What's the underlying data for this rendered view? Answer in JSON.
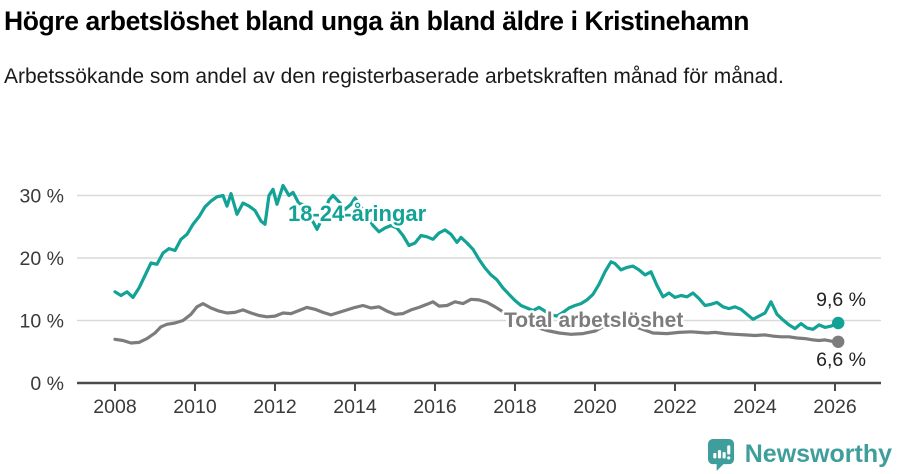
{
  "title": "Högre arbetslöshet bland unga än bland äldre i Kristinehamn",
  "subtitle": "Arbetssökande som andel av den registerbaserade arbetskraften månad för månad.",
  "footer": {
    "brand": "Newsworthy",
    "brand_color": "#3f9e9c"
  },
  "chart_data": {
    "type": "line",
    "unit": "%",
    "title": "Högre arbetslöshet bland unga än bland äldre i Kristinehamn",
    "xlabel": "",
    "ylabel": "Arbetssökande som andel av den registerbaserade arbetskraften",
    "x_axis": {
      "ticks": [
        2008,
        2010,
        2012,
        2014,
        2016,
        2018,
        2020,
        2022,
        2024,
        2026
      ],
      "range": [
        2007.6,
        2026.6
      ],
      "grid": false
    },
    "y_axis": {
      "ticks": [
        {
          "value": 0,
          "label": "0 %"
        },
        {
          "value": 10,
          "label": "10 %"
        },
        {
          "value": 20,
          "label": "20 %"
        },
        {
          "value": 30,
          "label": "30 %"
        }
      ],
      "range": [
        0,
        33
      ],
      "grid": true
    },
    "style": {
      "grid_color": "#d9d9d9",
      "axis_color": "#4a4a4a",
      "background": "#ffffff"
    },
    "legend_position": "inline-labels",
    "series": [
      {
        "name": "18-24-åringar",
        "color": "#13a296",
        "end_label": "9,6 %",
        "end_value": 9.6,
        "points": [
          [
            2008.0,
            14.6
          ],
          [
            2008.15,
            14.0
          ],
          [
            2008.3,
            14.6
          ],
          [
            2008.45,
            13.7
          ],
          [
            2008.6,
            15.2
          ],
          [
            2008.75,
            17.2
          ],
          [
            2008.9,
            19.2
          ],
          [
            2009.05,
            19.0
          ],
          [
            2009.2,
            20.8
          ],
          [
            2009.35,
            21.5
          ],
          [
            2009.5,
            21.2
          ],
          [
            2009.65,
            23.0
          ],
          [
            2009.8,
            23.8
          ],
          [
            2009.95,
            25.4
          ],
          [
            2010.1,
            26.6
          ],
          [
            2010.25,
            28.2
          ],
          [
            2010.4,
            29.1
          ],
          [
            2010.55,
            29.8
          ],
          [
            2010.7,
            30.0
          ],
          [
            2010.8,
            28.3
          ],
          [
            2010.9,
            30.3
          ],
          [
            2011.05,
            27.0
          ],
          [
            2011.2,
            28.8
          ],
          [
            2011.35,
            28.3
          ],
          [
            2011.5,
            27.6
          ],
          [
            2011.65,
            25.9
          ],
          [
            2011.75,
            25.4
          ],
          [
            2011.85,
            30.0
          ],
          [
            2011.95,
            31.0
          ],
          [
            2012.05,
            28.6
          ],
          [
            2012.2,
            31.6
          ],
          [
            2012.35,
            30.0
          ],
          [
            2012.45,
            30.5
          ],
          [
            2012.6,
            28.7
          ],
          [
            2012.75,
            28.5
          ],
          [
            2012.9,
            26.4
          ],
          [
            2013.05,
            24.6
          ],
          [
            2013.2,
            26.6
          ],
          [
            2013.35,
            29.3
          ],
          [
            2013.45,
            30.0
          ],
          [
            2013.6,
            29.0
          ],
          [
            2013.75,
            27.8
          ],
          [
            2013.9,
            28.6
          ],
          [
            2014.0,
            29.6
          ],
          [
            2014.15,
            28.2
          ],
          [
            2014.3,
            26.8
          ],
          [
            2014.45,
            25.2
          ],
          [
            2014.6,
            24.2
          ],
          [
            2014.75,
            24.8
          ],
          [
            2014.9,
            25.2
          ],
          [
            2015.05,
            24.8
          ],
          [
            2015.2,
            23.6
          ],
          [
            2015.35,
            22.0
          ],
          [
            2015.5,
            22.4
          ],
          [
            2015.65,
            23.6
          ],
          [
            2015.8,
            23.4
          ],
          [
            2015.95,
            23.0
          ],
          [
            2016.1,
            24.0
          ],
          [
            2016.25,
            24.5
          ],
          [
            2016.4,
            23.8
          ],
          [
            2016.55,
            22.5
          ],
          [
            2016.65,
            23.3
          ],
          [
            2016.8,
            22.4
          ],
          [
            2016.95,
            21.4
          ],
          [
            2017.1,
            19.8
          ],
          [
            2017.25,
            18.4
          ],
          [
            2017.4,
            17.3
          ],
          [
            2017.55,
            16.5
          ],
          [
            2017.7,
            15.2
          ],
          [
            2017.85,
            14.2
          ],
          [
            2018.0,
            13.2
          ],
          [
            2018.15,
            12.4
          ],
          [
            2018.3,
            12.0
          ],
          [
            2018.45,
            11.6
          ],
          [
            2018.6,
            12.1
          ],
          [
            2018.75,
            11.5
          ],
          [
            2018.9,
            10.9
          ],
          [
            2019.05,
            10.7
          ],
          [
            2019.2,
            11.3
          ],
          [
            2019.35,
            12.0
          ],
          [
            2019.5,
            12.4
          ],
          [
            2019.65,
            12.7
          ],
          [
            2019.8,
            13.3
          ],
          [
            2019.95,
            14.2
          ],
          [
            2020.1,
            15.8
          ],
          [
            2020.25,
            17.8
          ],
          [
            2020.4,
            19.4
          ],
          [
            2020.5,
            19.1
          ],
          [
            2020.65,
            18.1
          ],
          [
            2020.8,
            18.5
          ],
          [
            2020.95,
            18.7
          ],
          [
            2021.1,
            18.1
          ],
          [
            2021.25,
            17.3
          ],
          [
            2021.4,
            17.8
          ],
          [
            2021.55,
            15.6
          ],
          [
            2021.7,
            13.8
          ],
          [
            2021.85,
            14.4
          ],
          [
            2022.0,
            13.7
          ],
          [
            2022.15,
            14.0
          ],
          [
            2022.3,
            13.8
          ],
          [
            2022.45,
            14.4
          ],
          [
            2022.6,
            13.5
          ],
          [
            2022.75,
            12.4
          ],
          [
            2022.9,
            12.6
          ],
          [
            2023.05,
            12.9
          ],
          [
            2023.2,
            12.2
          ],
          [
            2023.35,
            11.9
          ],
          [
            2023.5,
            12.2
          ],
          [
            2023.65,
            11.8
          ],
          [
            2023.8,
            11.0
          ],
          [
            2023.95,
            10.2
          ],
          [
            2024.1,
            10.7
          ],
          [
            2024.25,
            11.2
          ],
          [
            2024.4,
            13.0
          ],
          [
            2024.55,
            11.0
          ],
          [
            2024.7,
            10.1
          ],
          [
            2024.85,
            9.3
          ],
          [
            2025.0,
            8.7
          ],
          [
            2025.15,
            9.5
          ],
          [
            2025.3,
            8.8
          ],
          [
            2025.45,
            8.6
          ],
          [
            2025.6,
            9.3
          ],
          [
            2025.75,
            8.9
          ],
          [
            2025.9,
            9.1
          ],
          [
            2026.08,
            9.6
          ]
        ]
      },
      {
        "name": "Total arbetslöshet",
        "color": "#7c7c7c",
        "end_label": "6,6 %",
        "end_value": 6.6,
        "points": [
          [
            2008.0,
            7.0
          ],
          [
            2008.2,
            6.8
          ],
          [
            2008.4,
            6.4
          ],
          [
            2008.6,
            6.5
          ],
          [
            2008.8,
            7.1
          ],
          [
            2009.0,
            8.0
          ],
          [
            2009.15,
            9.0
          ],
          [
            2009.3,
            9.4
          ],
          [
            2009.5,
            9.6
          ],
          [
            2009.7,
            10.0
          ],
          [
            2009.9,
            11.0
          ],
          [
            2010.05,
            12.2
          ],
          [
            2010.2,
            12.7
          ],
          [
            2010.4,
            12.0
          ],
          [
            2010.6,
            11.5
          ],
          [
            2010.8,
            11.2
          ],
          [
            2011.0,
            11.3
          ],
          [
            2011.2,
            11.7
          ],
          [
            2011.4,
            11.2
          ],
          [
            2011.6,
            10.8
          ],
          [
            2011.8,
            10.6
          ],
          [
            2012.0,
            10.7
          ],
          [
            2012.2,
            11.2
          ],
          [
            2012.4,
            11.1
          ],
          [
            2012.6,
            11.6
          ],
          [
            2012.8,
            12.1
          ],
          [
            2013.0,
            11.8
          ],
          [
            2013.2,
            11.3
          ],
          [
            2013.4,
            10.9
          ],
          [
            2013.6,
            11.3
          ],
          [
            2013.8,
            11.7
          ],
          [
            2014.0,
            12.1
          ],
          [
            2014.2,
            12.4
          ],
          [
            2014.4,
            12.0
          ],
          [
            2014.6,
            12.2
          ],
          [
            2014.8,
            11.5
          ],
          [
            2015.0,
            11.0
          ],
          [
            2015.2,
            11.1
          ],
          [
            2015.4,
            11.7
          ],
          [
            2015.6,
            12.1
          ],
          [
            2015.8,
            12.6
          ],
          [
            2015.95,
            13.0
          ],
          [
            2016.1,
            12.3
          ],
          [
            2016.3,
            12.4
          ],
          [
            2016.5,
            13.0
          ],
          [
            2016.7,
            12.7
          ],
          [
            2016.9,
            13.4
          ],
          [
            2017.1,
            13.3
          ],
          [
            2017.3,
            12.9
          ],
          [
            2017.5,
            12.2
          ],
          [
            2017.7,
            11.4
          ],
          [
            2017.9,
            10.6
          ],
          [
            2018.2,
            9.7
          ],
          [
            2018.5,
            9.0
          ],
          [
            2018.8,
            8.4
          ],
          [
            2019.1,
            8.0
          ],
          [
            2019.4,
            7.8
          ],
          [
            2019.7,
            7.9
          ],
          [
            2020.0,
            8.3
          ],
          [
            2020.3,
            9.4
          ],
          [
            2020.55,
            9.8
          ],
          [
            2020.8,
            9.5
          ],
          [
            2021.1,
            8.8
          ],
          [
            2021.45,
            8.0
          ],
          [
            2021.8,
            7.9
          ],
          [
            2022.1,
            8.1
          ],
          [
            2022.4,
            8.2
          ],
          [
            2022.6,
            8.1
          ],
          [
            2022.8,
            8.0
          ],
          [
            2023.0,
            8.1
          ],
          [
            2023.25,
            7.9
          ],
          [
            2023.5,
            7.8
          ],
          [
            2023.75,
            7.7
          ],
          [
            2024.0,
            7.6
          ],
          [
            2024.25,
            7.7
          ],
          [
            2024.45,
            7.5
          ],
          [
            2024.65,
            7.4
          ],
          [
            2024.85,
            7.4
          ],
          [
            2025.05,
            7.2
          ],
          [
            2025.25,
            7.1
          ],
          [
            2025.45,
            6.9
          ],
          [
            2025.6,
            6.8
          ],
          [
            2025.75,
            6.9
          ],
          [
            2025.9,
            6.7
          ],
          [
            2026.08,
            6.6
          ]
        ]
      }
    ]
  }
}
